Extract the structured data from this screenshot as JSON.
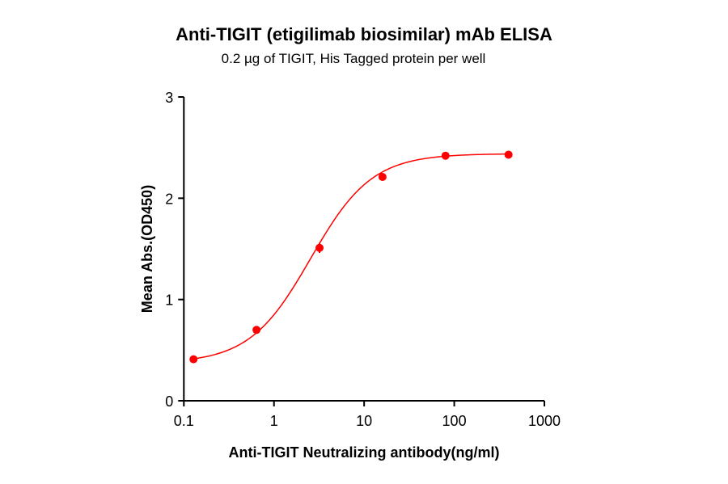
{
  "chart_data": {
    "type": "scatter",
    "title": "Anti-TIGIT (etigilimab biosimilar) mAb ELISA",
    "subtitle": "0.2 µg of TIGIT, His Tagged protein per well",
    "xlabel": "Anti-TIGIT Neutralizing antibody(ng/ml)",
    "ylabel": "Mean Abs.(OD450)",
    "xscale": "log",
    "xlim": [
      0.1,
      1000
    ],
    "ylim": [
      0,
      3
    ],
    "xticks": [
      "0.1",
      "1",
      "10",
      "100",
      "1000"
    ],
    "yticks": [
      "0",
      "1",
      "2",
      "3"
    ],
    "grid": false,
    "color": "#ff0000",
    "fit": "sigmoidal curve",
    "series": [
      {
        "x": [
          0.128,
          0.64,
          3.2,
          16,
          80,
          400
        ],
        "y": [
          0.41,
          0.7,
          1.51,
          2.21,
          2.42,
          2.43
        ],
        "error": [
          0.01,
          0.01,
          0.05,
          0.02,
          0.01,
          0.01
        ]
      }
    ]
  }
}
